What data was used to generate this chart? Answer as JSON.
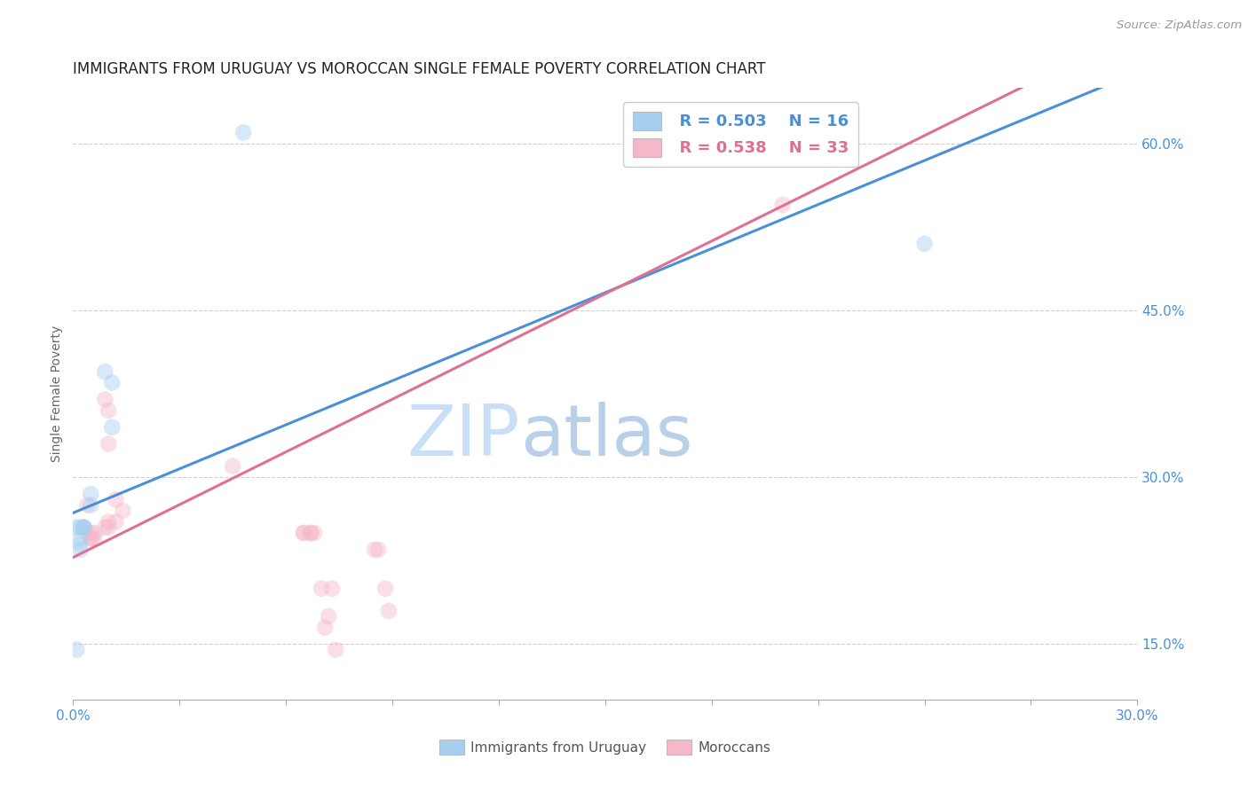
{
  "title": "IMMIGRANTS FROM URUGUAY VS MOROCCAN SINGLE FEMALE POVERTY CORRELATION CHART",
  "source": "Source: ZipAtlas.com",
  "ylabel": "Single Female Poverty",
  "watermark_zip": "ZIP",
  "watermark_atlas": "atlas",
  "xlim": [
    0.0,
    0.3
  ],
  "ylim": [
    0.1,
    0.65
  ],
  "xticks": [
    0.0,
    0.03,
    0.06,
    0.09,
    0.12,
    0.15,
    0.18,
    0.21,
    0.24,
    0.27,
    0.3
  ],
  "xtick_labels": [
    "0.0%",
    "",
    "",
    "",
    "",
    "",
    "",
    "",
    "",
    "",
    "30.0%"
  ],
  "ytick_right_vals": [
    0.15,
    0.3,
    0.45,
    0.6
  ],
  "ytick_right_labels": [
    "15.0%",
    "30.0%",
    "45.0%",
    "60.0%"
  ],
  "uruguay_color": "#a8cff0",
  "morocco_color": "#f5b8c8",
  "uruguay_line_color": "#4a90d9",
  "morocco_line_color": "#e07090",
  "legend_r_uruguay": "R = 0.503",
  "legend_n_uruguay": "N = 16",
  "legend_r_morocco": "R = 0.538",
  "legend_n_morocco": "N = 33",
  "tick_color": "#4a90d9",
  "uruguay_x": [
    0.002,
    0.009,
    0.011,
    0.011,
    0.005,
    0.005,
    0.001,
    0.003,
    0.003,
    0.001,
    0.002,
    0.002,
    0.002,
    0.003,
    0.048,
    0.24
  ],
  "uruguay_y": [
    0.255,
    0.395,
    0.385,
    0.345,
    0.285,
    0.275,
    0.145,
    0.255,
    0.255,
    0.255,
    0.245,
    0.24,
    0.235,
    0.255,
    0.61,
    0.51
  ],
  "morocco_x": [
    0.01,
    0.01,
    0.009,
    0.012,
    0.014,
    0.012,
    0.009,
    0.01,
    0.01,
    0.003,
    0.004,
    0.005,
    0.004,
    0.005,
    0.005,
    0.006,
    0.006,
    0.045,
    0.065,
    0.065,
    0.067,
    0.067,
    0.068,
    0.07,
    0.071,
    0.072,
    0.073,
    0.074,
    0.2,
    0.085,
    0.086,
    0.088,
    0.089
  ],
  "morocco_y": [
    0.36,
    0.33,
    0.37,
    0.28,
    0.27,
    0.26,
    0.255,
    0.26,
    0.255,
    0.255,
    0.275,
    0.25,
    0.25,
    0.245,
    0.245,
    0.25,
    0.245,
    0.31,
    0.25,
    0.25,
    0.25,
    0.25,
    0.25,
    0.2,
    0.165,
    0.175,
    0.2,
    0.145,
    0.545,
    0.235,
    0.235,
    0.2,
    0.18
  ],
  "grid_color": "#d0d0d0",
  "background_color": "#ffffff",
  "title_fontsize": 12,
  "axis_label_fontsize": 10,
  "tick_fontsize": 11,
  "legend_fontsize": 13,
  "marker_size": 180,
  "marker_alpha": 0.45,
  "line_width": 2.2,
  "blue_intercept": 0.268,
  "blue_slope": 1.32,
  "pink_intercept": 0.228,
  "pink_slope": 1.58
}
